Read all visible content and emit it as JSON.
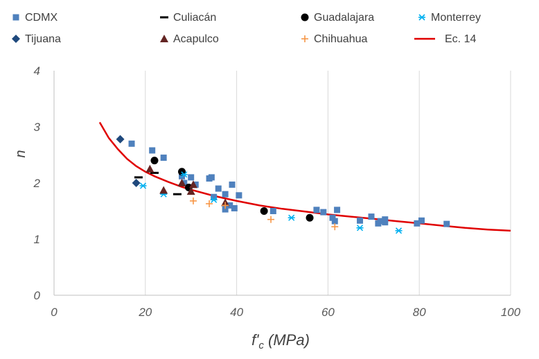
{
  "chart_data": {
    "type": "scatter",
    "title": "",
    "xlabel": "f'c (MPa)",
    "xlabel_main": "f'",
    "xlabel_sub": "c",
    "xlabel_units": " (MPa)",
    "ylabel": "n",
    "xlim": [
      0,
      100
    ],
    "ylim": [
      0,
      4
    ],
    "xticks": [
      0,
      20,
      40,
      60,
      80,
      100
    ],
    "yticks": [
      0,
      1,
      2,
      3,
      4
    ],
    "grid": "vertical",
    "legend_position": "top",
    "series": [
      {
        "name": "CDMX",
        "marker": "square",
        "color": "#4f81bd",
        "points": [
          [
            17,
            2.7
          ],
          [
            21.5,
            2.58
          ],
          [
            24,
            2.45
          ],
          [
            28,
            2.12
          ],
          [
            28.5,
            2.0
          ],
          [
            30,
            2.1
          ],
          [
            31,
            1.97
          ],
          [
            34,
            2.08
          ],
          [
            34.5,
            2.1
          ],
          [
            35,
            1.75
          ],
          [
            36,
            1.9
          ],
          [
            37.5,
            1.8
          ],
          [
            37.5,
            1.53
          ],
          [
            38.5,
            1.6
          ],
          [
            39,
            1.97
          ],
          [
            39.5,
            1.55
          ],
          [
            40.5,
            1.78
          ],
          [
            48,
            1.5
          ],
          [
            57.5,
            1.52
          ],
          [
            59,
            1.48
          ],
          [
            61,
            1.38
          ],
          [
            61.5,
            1.32
          ],
          [
            62,
            1.52
          ],
          [
            67,
            1.33
          ],
          [
            69.5,
            1.4
          ],
          [
            71,
            1.28
          ],
          [
            71.5,
            1.32
          ],
          [
            72.5,
            1.3
          ],
          [
            72.5,
            1.35
          ],
          [
            79.5,
            1.28
          ],
          [
            80.5,
            1.33
          ],
          [
            86,
            1.27
          ]
        ]
      },
      {
        "name": "Culiacán",
        "marker": "dash",
        "color": "#000000",
        "points": [
          [
            18.5,
            2.1
          ],
          [
            22,
            2.18
          ],
          [
            27,
            1.8
          ]
        ]
      },
      {
        "name": "Guadalajara",
        "marker": "circle",
        "color": "#000000",
        "points": [
          [
            22,
            2.4
          ],
          [
            28,
            2.2
          ],
          [
            29.5,
            1.92
          ],
          [
            46,
            1.5
          ],
          [
            56,
            1.38
          ]
        ]
      },
      {
        "name": "Monterrey",
        "marker": "asterisk",
        "color": "#00b0f0",
        "points": [
          [
            19.5,
            1.95
          ],
          [
            24,
            1.8
          ],
          [
            28.5,
            2.15
          ],
          [
            35,
            1.7
          ],
          [
            52,
            1.38
          ],
          [
            67,
            1.2
          ],
          [
            75.5,
            1.15
          ]
        ]
      },
      {
        "name": "Tijuana",
        "marker": "diamond",
        "color": "#1f497d",
        "points": [
          [
            14.5,
            2.78
          ],
          [
            18,
            2.0
          ]
        ]
      },
      {
        "name": "Acapulco",
        "marker": "triangle",
        "color": "#632523",
        "points": [
          [
            21,
            2.25
          ],
          [
            24,
            1.87
          ],
          [
            28,
            2.0
          ],
          [
            30,
            1.85
          ],
          [
            30.5,
            1.97
          ],
          [
            37.5,
            1.65
          ]
        ]
      },
      {
        "name": "Chihuahua",
        "marker": "plus",
        "color": "#f79646",
        "points": [
          [
            30.5,
            1.68
          ],
          [
            34,
            1.63
          ],
          [
            37.5,
            1.6
          ],
          [
            47.5,
            1.35
          ],
          [
            61.5,
            1.22
          ]
        ]
      }
    ],
    "line_series": {
      "name": "Ec. 14",
      "color": "#e00000",
      "points": [
        [
          10,
          3.08
        ],
        [
          12,
          2.8
        ],
        [
          14,
          2.6
        ],
        [
          16,
          2.43
        ],
        [
          18,
          2.3
        ],
        [
          20,
          2.2
        ],
        [
          22,
          2.12
        ],
        [
          25,
          2.02
        ],
        [
          28,
          1.93
        ],
        [
          30,
          1.88
        ],
        [
          35,
          1.77
        ],
        [
          40,
          1.68
        ],
        [
          45,
          1.6
        ],
        [
          50,
          1.54
        ],
        [
          55,
          1.49
        ],
        [
          60,
          1.44
        ],
        [
          65,
          1.4
        ],
        [
          70,
          1.36
        ],
        [
          75,
          1.32
        ],
        [
          80,
          1.28
        ],
        [
          85,
          1.24
        ],
        [
          90,
          1.2
        ],
        [
          95,
          1.17
        ],
        [
          100,
          1.15
        ]
      ]
    },
    "legend": [
      "CDMX",
      "Culiacán",
      "Guadalajara",
      "Monterrey",
      "Tijuana",
      "Acapulco",
      "Chihuahua",
      "Ec. 14"
    ]
  }
}
